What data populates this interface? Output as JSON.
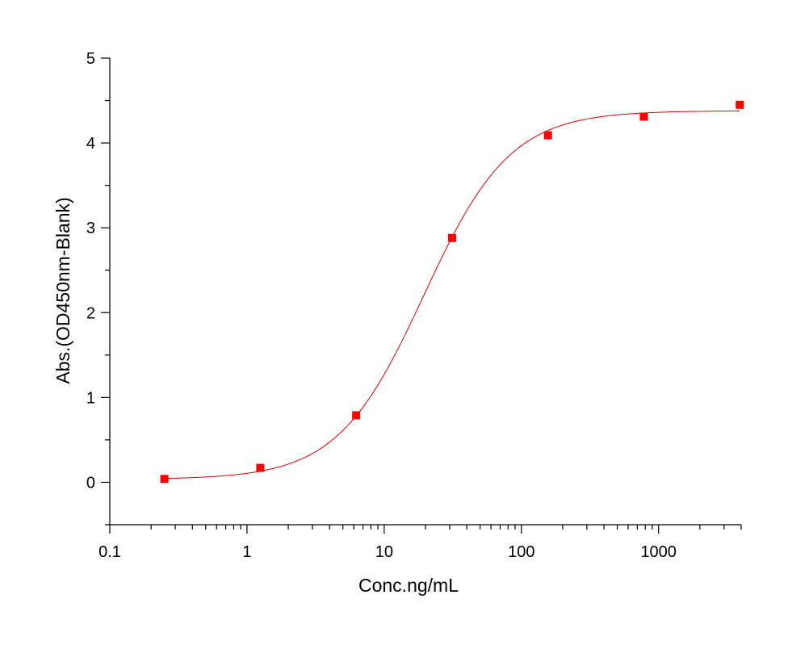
{
  "chart_data": {
    "type": "scatter",
    "title": "",
    "xlabel": "Conc.ng/mL",
    "ylabel": "Abs.(OD450nm-Blank)",
    "xscale": "log",
    "xlim": [
      0.1,
      4000
    ],
    "ylim": [
      -0.5,
      5
    ],
    "x_ticks": [
      0.1,
      1,
      10,
      100,
      1000
    ],
    "x_tick_labels": [
      "0.1",
      "1",
      "10",
      "100",
      "1000"
    ],
    "y_ticks": [
      0,
      1,
      2,
      3,
      4,
      5
    ],
    "y_tick_labels": [
      "0",
      "1",
      "2",
      "3",
      "4",
      "5"
    ],
    "grid": false,
    "legend": "none",
    "marker_color": "#ff0000",
    "curve_color": "#e00000",
    "series": [
      {
        "x": [
          0.25,
          1.25,
          6.25,
          31.25,
          156.25,
          781.25,
          3906.25
        ],
        "y": [
          0.04,
          0.17,
          0.79,
          2.88,
          4.09,
          4.31,
          4.45
        ]
      }
    ],
    "fit": {
      "model": "4PL",
      "bottom": 0.035,
      "top": 4.38,
      "ec50": 19.5,
      "hill": 1.38
    }
  }
}
